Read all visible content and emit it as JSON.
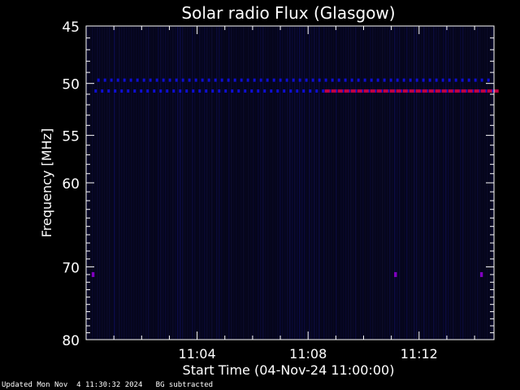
{
  "chart_data": {
    "type": "heatmap",
    "title": "Solar radio Flux (Glasgow)",
    "ylabel": "Frequency [MHz]",
    "xlabel": "Start Time (04-Nov-24 11:00:00)",
    "ylim": [
      45,
      80
    ],
    "y_scale": "log",
    "y_ticks": [
      45,
      50,
      55,
      60,
      70,
      80
    ],
    "x_range_minutes": [
      0,
      14.7
    ],
    "x_ticks": [
      {
        "minute": 4,
        "label": "11:04"
      },
      {
        "minute": 8,
        "label": "11:08"
      },
      {
        "minute": 12,
        "label": "11:12"
      }
    ],
    "colors": {
      "background": "#000000",
      "plot": "#05051a",
      "low": "#1010ff",
      "high": "#c00040",
      "marker": "#8000c0"
    },
    "emission_bands": [
      {
        "freq": 49.7,
        "t_start": 0.4,
        "t_end": 14.5,
        "level": "low"
      },
      {
        "freq": 50.7,
        "t_start": 0.3,
        "t_end": 14.7,
        "level": "low"
      },
      {
        "freq": 50.7,
        "t_start": 8.6,
        "t_end": 14.7,
        "level": "high"
      },
      {
        "freq": 71.0,
        "t_start": 0.2,
        "t_end": 0.3,
        "level": "marker"
      },
      {
        "freq": 71.0,
        "t_start": 11.1,
        "t_end": 11.2,
        "level": "marker"
      },
      {
        "freq": 71.0,
        "t_start": 14.2,
        "t_end": 14.3,
        "level": "marker"
      }
    ]
  },
  "footer": {
    "updated": "Updated Mon Nov  4 11:30:32 2024",
    "note": "BG subtracted"
  }
}
